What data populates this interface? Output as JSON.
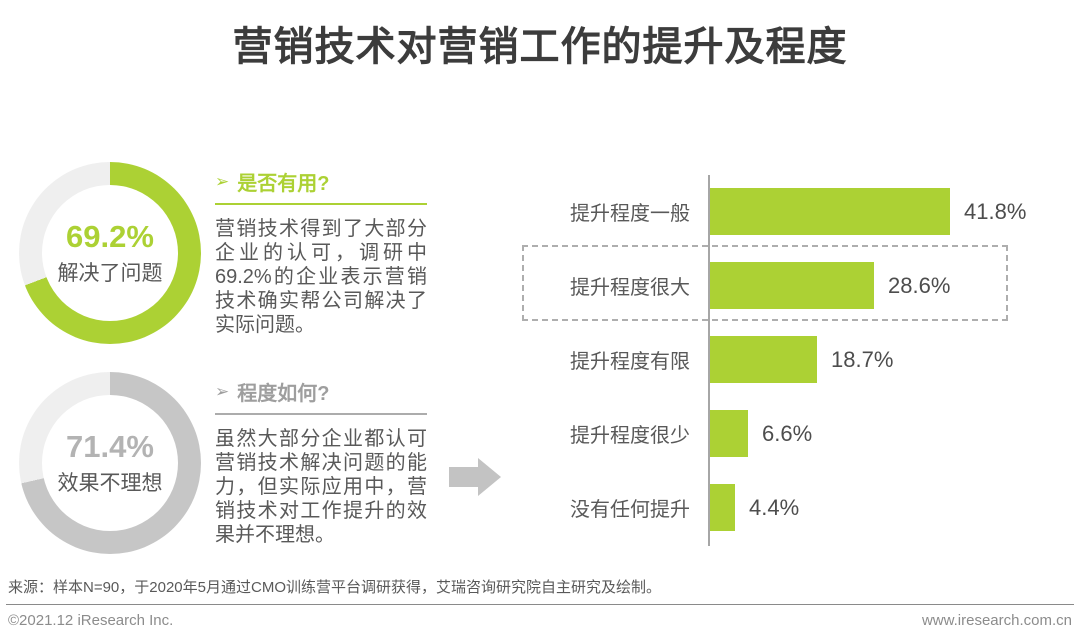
{
  "title": "营销技术对营销工作的提升及程度",
  "accent_color": "#acd134",
  "donuts": [
    {
      "value": "69.2%",
      "label": "解决了问题",
      "percent": 69.2,
      "ring_color": "#acd134",
      "track_color": "#efefef",
      "value_color": "#acd134",
      "label_color": "#595959"
    },
    {
      "value": "71.4%",
      "label": "效果不理想",
      "percent": 71.4,
      "ring_color": "#c6c6c6",
      "track_color": "#efefef",
      "value_color": "#b3b3b3",
      "label_color": "#595959"
    }
  ],
  "sections": [
    {
      "marker": "➢",
      "heading": "是否有用?",
      "heading_color": "#acd134",
      "rule_color": "#acd134",
      "body": "营销技术得到了大部分企业的认可，调研中69.2%的企业表示营销技术确实帮公司解决了实际问题。"
    },
    {
      "marker": "➢",
      "heading": "程度如何?",
      "heading_color": "#9e9e9e",
      "rule_color": "#acacac",
      "body": "虽然大部分企业都认可营销技术解决问题的能力，但实际应用中，营销技术对工作提升的效果并不理想。"
    }
  ],
  "arrow_icon_color": "#c3c3c3",
  "chart_data": {
    "type": "bar",
    "orientation": "horizontal",
    "categories": [
      "提升程度一般",
      "提升程度很大",
      "提升程度有限",
      "提升程度很少",
      "没有任何提升"
    ],
    "values": [
      41.8,
      28.6,
      18.7,
      6.6,
      4.4
    ],
    "value_labels": [
      "41.8%",
      "28.6%",
      "18.7%",
      "6.6%",
      "4.4%"
    ],
    "bar_color": "#acd134",
    "highlight_index": 1,
    "xlim": [
      0,
      45
    ],
    "grid": false,
    "legend": false
  },
  "source": "来源：样本N=90，于2020年5月通过CMO训练营平台调研获得，艾瑞咨询研究院自主研究及绘制。",
  "footer": {
    "copyright": "©2021.12 iResearch Inc.",
    "website": "www.iresearch.com.cn"
  }
}
